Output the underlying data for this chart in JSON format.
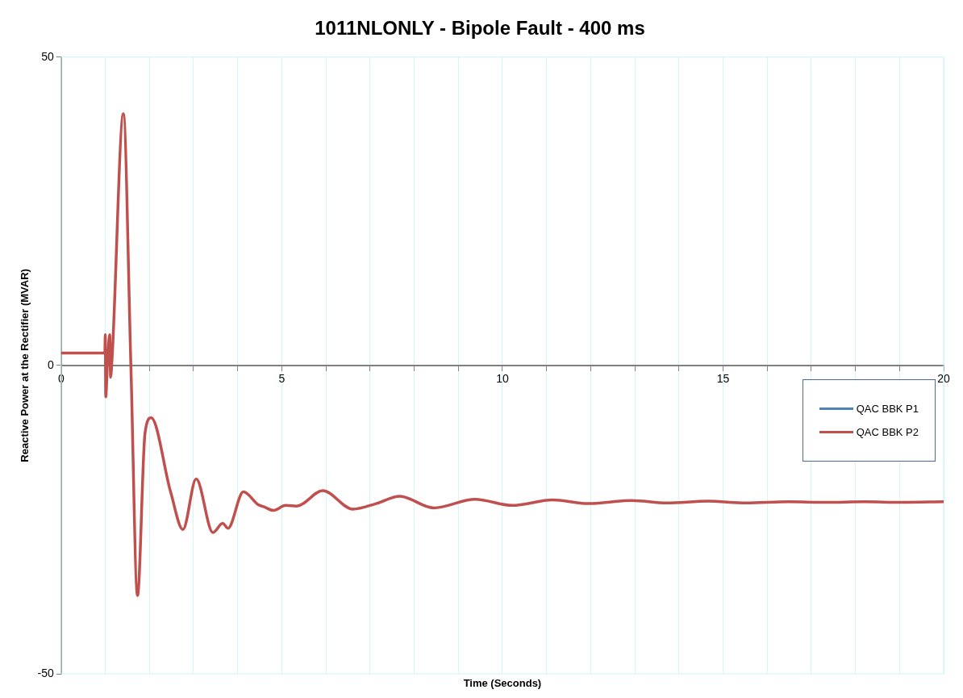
{
  "chart_data": {
    "type": "line",
    "title": "1011NLONLY - Bipole Fault - 400 ms",
    "xlabel": "Time (Seconds)",
    "ylabel": "Reactive Power at the Rectifier (MVAR)",
    "xlim": [
      0,
      20
    ],
    "ylim": [
      -50,
      50
    ],
    "xticks": [
      0,
      {
        "value": 1,
        "label": null
      },
      {
        "value": 2,
        "label": null
      },
      {
        "value": 3,
        "label": null
      },
      {
        "value": 4,
        "label": null
      },
      5,
      {
        "value": 6,
        "label": null
      },
      {
        "value": 7,
        "label": null
      },
      {
        "value": 8,
        "label": null
      },
      {
        "value": 9,
        "label": null
      },
      10,
      {
        "value": 11,
        "label": null
      },
      {
        "value": 12,
        "label": null
      },
      {
        "value": 13,
        "label": null
      },
      {
        "value": 14,
        "label": null
      },
      15,
      {
        "value": 16,
        "label": null
      },
      {
        "value": 17,
        "label": null
      },
      {
        "value": 18,
        "label": null
      },
      {
        "value": 19,
        "label": null
      },
      20
    ],
    "yticks": [
      -50,
      0,
      50
    ],
    "grid": "x",
    "legend": "right",
    "marker": "none",
    "line_style": "solid",
    "series": [
      {
        "name": "QAC BBK P1",
        "color": "#4f81bd"
      },
      {
        "name": "QAC BBK P2",
        "color": "#c0504d",
        "x": [
          0,
          0.99,
          1.0,
          1.01,
          1.05,
          1.1,
          1.12,
          1.16,
          1.41,
          1.58,
          1.73,
          1.9,
          2.04,
          2.48,
          2.76,
          3.06,
          3.44,
          3.66,
          3.78,
          4.13,
          4.47,
          4.59,
          4.81,
          5.09,
          5.34,
          5.93,
          6.61,
          7.14,
          7.67,
          8.44,
          9.38,
          10.22,
          11.14,
          11.93,
          12.93,
          13.72,
          14.66,
          15.52,
          16.49,
          17.32,
          18.21,
          19.04,
          20
        ],
        "values": [
          2.0,
          2.0,
          5.0,
          -5.1,
          0.5,
          5.0,
          -1.9,
          2.0,
          40.8,
          0,
          -37.3,
          -11,
          -8.5,
          -20.5,
          -26.6,
          -18.4,
          -27.1,
          -25.6,
          -26.4,
          -20.5,
          -22.6,
          -22.9,
          -23.5,
          -22.7,
          -22.8,
          -20.3,
          -23.3,
          -22.4,
          -21.2,
          -23.1,
          -21.7,
          -22.7,
          -21.8,
          -22.4,
          -21.9,
          -22.3,
          -22.0,
          -22.3,
          -22.1,
          -22.2,
          -22.1,
          -22.2,
          -22.1
        ]
      }
    ]
  }
}
